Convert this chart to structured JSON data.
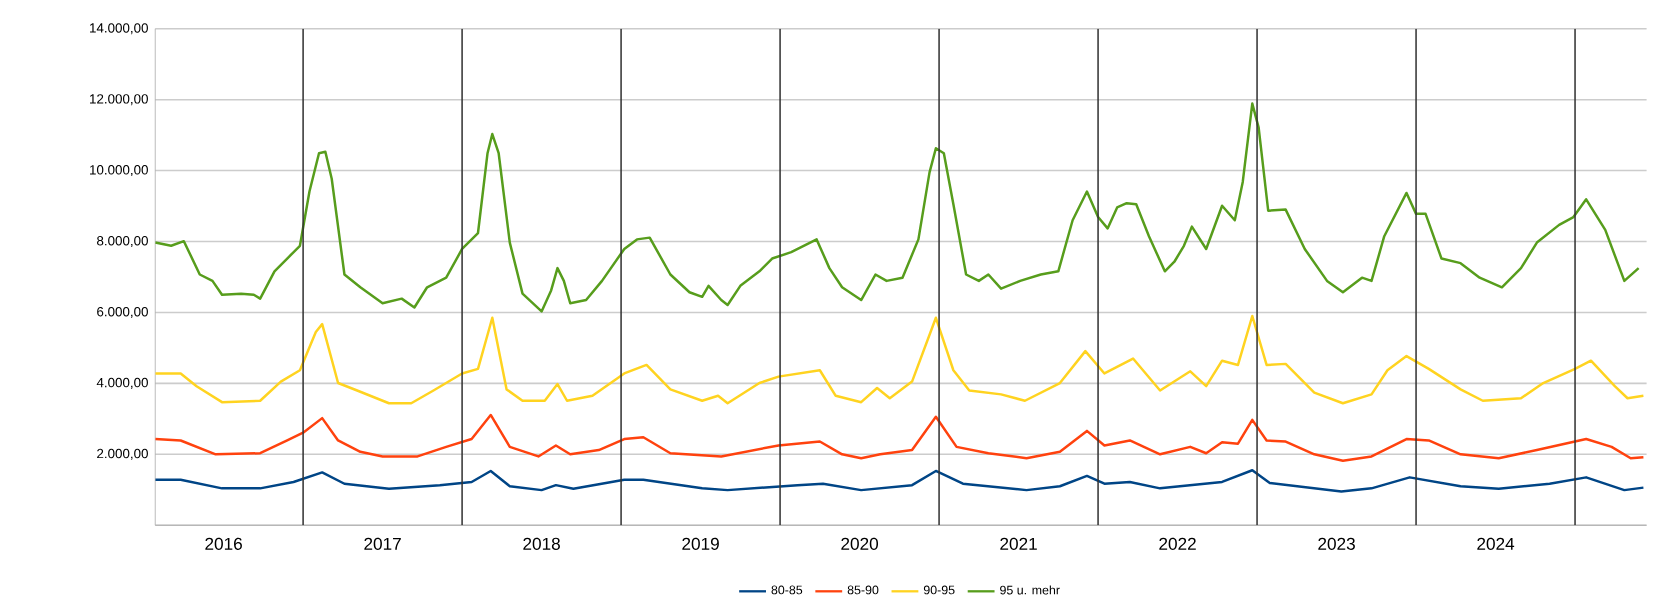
{
  "chart_data": {
    "type": "line",
    "xlim": [
      2016.07,
      2025.45
    ],
    "ylim": [
      0,
      14000
    ],
    "xticks": [
      {
        "value": 2016.5,
        "label": "2016"
      },
      {
        "value": 2017.5,
        "label": "2017"
      },
      {
        "value": 2018.5,
        "label": "2018"
      },
      {
        "value": 2019.5,
        "label": "2019"
      },
      {
        "value": 2020.5,
        "label": "2020"
      },
      {
        "value": 2021.5,
        "label": "2021"
      },
      {
        "value": 2022.5,
        "label": "2022"
      },
      {
        "value": 2023.5,
        "label": "2023"
      },
      {
        "value": 2024.5,
        "label": "2024"
      }
    ],
    "yticks": [
      {
        "value": 0,
        "label": null
      },
      {
        "value": 2000,
        "label": "2.000,00"
      },
      {
        "value": 4000,
        "label": "4.000,00"
      },
      {
        "value": 6000,
        "label": "6.000,00"
      },
      {
        "value": 8000,
        "label": "8.000,00"
      },
      {
        "value": 10000,
        "label": "10.000,00"
      },
      {
        "value": 12000,
        "label": "12.000,00"
      },
      {
        "value": 14000,
        "label": "14.000,00"
      }
    ],
    "grid": "y",
    "legend": "bottom",
    "ref_lines": [
      {
        "axis": "x",
        "value": 2017,
        "color": "#333333"
      },
      {
        "axis": "x",
        "value": 2018,
        "color": "#333333"
      },
      {
        "axis": "x",
        "value": 2019,
        "color": "#333333"
      },
      {
        "axis": "x",
        "value": 2020,
        "color": "#333333"
      },
      {
        "axis": "x",
        "value": 2021,
        "color": "#333333"
      },
      {
        "axis": "x",
        "value": 2022,
        "color": "#333333"
      },
      {
        "axis": "x",
        "value": 2023,
        "color": "#333333"
      },
      {
        "axis": "x",
        "value": 2024,
        "color": "#333333"
      },
      {
        "axis": "x",
        "value": 2025,
        "color": "#333333"
      }
    ],
    "series": [
      {
        "name": "80-85",
        "color": "#004586",
        "x": [
          2016.07,
          2016.23,
          2016.49,
          2016.73,
          2016.94,
          2017.12,
          2017.26,
          2017.54,
          2017.86,
          2018.06,
          2018.18,
          2018.3,
          2018.5,
          2018.59,
          2018.7,
          2019.02,
          2019.14,
          2019.51,
          2019.67,
          2020.11,
          2020.27,
          2020.51,
          2020.83,
          2020.98,
          2021.15,
          2021.55,
          2021.76,
          2021.93,
          2022.04,
          2022.2,
          2022.39,
          2022.78,
          2022.97,
          2023.08,
          2023.53,
          2023.72,
          2023.96,
          2024.28,
          2024.52,
          2024.84,
          2025.07,
          2025.31,
          2025.43
        ],
        "values": [
          1280,
          1280,
          1040,
          1040,
          1220,
          1490,
          1170,
          1030,
          1130,
          1220,
          1530,
          1100,
          990,
          1130,
          1030,
          1280,
          1280,
          1040,
          990,
          1130,
          1170,
          990,
          1130,
          1530,
          1170,
          990,
          1100,
          1390,
          1170,
          1220,
          1040,
          1220,
          1550,
          1190,
          950,
          1040,
          1350,
          1100,
          1030,
          1170,
          1350,
          990,
          1060
        ]
      },
      {
        "name": "85-90",
        "color": "#ff420e",
        "x": [
          2016.07,
          2016.23,
          2016.45,
          2016.73,
          2016.9,
          2017.0,
          2017.12,
          2017.22,
          2017.36,
          2017.5,
          2017.72,
          2017.9,
          2018.06,
          2018.18,
          2018.3,
          2018.48,
          2018.59,
          2018.68,
          2018.86,
          2019.02,
          2019.14,
          2019.31,
          2019.63,
          2019.99,
          2020.25,
          2020.39,
          2020.51,
          2020.63,
          2020.83,
          2020.98,
          2021.11,
          2021.31,
          2021.55,
          2021.76,
          2021.93,
          2022.04,
          2022.2,
          2022.39,
          2022.58,
          2022.68,
          2022.78,
          2022.88,
          2022.97,
          2023.06,
          2023.18,
          2023.36,
          2023.54,
          2023.72,
          2023.94,
          2024.08,
          2024.28,
          2024.52,
          2024.76,
          2025.07,
          2025.23,
          2025.35,
          2025.43
        ],
        "values": [
          2430,
          2390,
          2000,
          2030,
          2390,
          2610,
          3020,
          2390,
          2070,
          1940,
          1940,
          2210,
          2430,
          3110,
          2210,
          1940,
          2250,
          2000,
          2120,
          2430,
          2480,
          2030,
          1940,
          2250,
          2360,
          2000,
          1890,
          2000,
          2120,
          3060,
          2210,
          2030,
          1890,
          2070,
          2660,
          2250,
          2390,
          2000,
          2210,
          2030,
          2340,
          2300,
          2970,
          2390,
          2360,
          2000,
          1820,
          1940,
          2430,
          2390,
          2000,
          1890,
          2120,
          2430,
          2210,
          1890,
          1920
        ]
      },
      {
        "name": "90-95",
        "color": "#ffd320",
        "x": [
          2016.07,
          2016.23,
          2016.33,
          2016.49,
          2016.73,
          2016.86,
          2016.98,
          2017.08,
          2017.12,
          2017.22,
          2017.34,
          2017.54,
          2017.68,
          2017.82,
          2018.0,
          2018.1,
          2018.19,
          2018.28,
          2018.38,
          2018.52,
          2018.6,
          2018.66,
          2018.82,
          2019.02,
          2019.16,
          2019.31,
          2019.51,
          2019.61,
          2019.67,
          2019.87,
          2019.99,
          2020.25,
          2020.35,
          2020.51,
          2020.61,
          2020.69,
          2020.83,
          2020.98,
          2021.09,
          2021.19,
          2021.39,
          2021.54,
          2021.76,
          2021.92,
          2022.04,
          2022.22,
          2022.39,
          2022.58,
          2022.68,
          2022.78,
          2022.88,
          2022.97,
          2023.06,
          2023.18,
          2023.36,
          2023.54,
          2023.72,
          2023.82,
          2023.94,
          2024.08,
          2024.28,
          2024.42,
          2024.66,
          2024.8,
          2025.0,
          2025.1,
          2025.25,
          2025.33,
          2025.43
        ],
        "values": [
          4280,
          4280,
          3920,
          3470,
          3510,
          4050,
          4370,
          5450,
          5670,
          4010,
          3800,
          3440,
          3440,
          3800,
          4280,
          4410,
          5850,
          3830,
          3510,
          3510,
          3980,
          3510,
          3650,
          4280,
          4520,
          3830,
          3510,
          3650,
          3440,
          4010,
          4190,
          4370,
          3650,
          3470,
          3870,
          3580,
          4050,
          5850,
          4370,
          3800,
          3690,
          3510,
          4010,
          4910,
          4280,
          4700,
          3800,
          4340,
          3920,
          4640,
          4520,
          5900,
          4520,
          4550,
          3740,
          3440,
          3690,
          4370,
          4770,
          4410,
          3830,
          3510,
          3580,
          4010,
          4410,
          4640,
          3920,
          3580,
          3650
        ]
      },
      {
        "name": "95 u. mehr",
        "color": "#579d1c",
        "x": [
          2016.07,
          2016.17,
          2016.25,
          2016.35,
          2016.43,
          2016.49,
          2016.61,
          2016.69,
          2016.73,
          2016.82,
          2016.9,
          2016.98,
          2017.04,
          2017.1,
          2017.14,
          2017.18,
          2017.26,
          2017.36,
          2017.5,
          2017.62,
          2017.7,
          2017.78,
          2017.9,
          2018.0,
          2018.1,
          2018.16,
          2018.19,
          2018.23,
          2018.3,
          2018.38,
          2018.5,
          2018.56,
          2018.6,
          2018.64,
          2018.68,
          2018.78,
          2018.88,
          2019.02,
          2019.1,
          2019.18,
          2019.31,
          2019.43,
          2019.51,
          2019.55,
          2019.63,
          2019.67,
          2019.75,
          2019.87,
          2019.95,
          2020.07,
          2020.23,
          2020.31,
          2020.39,
          2020.51,
          2020.6,
          2020.67,
          2020.77,
          2020.87,
          2020.94,
          2020.98,
          2021.03,
          2021.09,
          2021.17,
          2021.25,
          2021.31,
          2021.39,
          2021.51,
          2021.64,
          2021.75,
          2021.84,
          2021.93,
          2022.0,
          2022.06,
          2022.12,
          2022.18,
          2022.24,
          2022.32,
          2022.42,
          2022.48,
          2022.54,
          2022.59,
          2022.68,
          2022.78,
          2022.86,
          2022.91,
          2022.97,
          2023.01,
          2023.07,
          2023.18,
          2023.3,
          2023.44,
          2023.54,
          2023.66,
          2023.72,
          2023.8,
          2023.94,
          2024.0,
          2024.06,
          2024.16,
          2024.28,
          2024.4,
          2024.54,
          2024.66,
          2024.76,
          2024.9,
          2024.99,
          2025.07,
          2025.19,
          2025.31,
          2025.4
        ],
        "values": [
          7970,
          7880,
          8010,
          7070,
          6890,
          6500,
          6530,
          6500,
          6390,
          7160,
          7520,
          7880,
          9410,
          10490,
          10530,
          9770,
          7070,
          6710,
          6260,
          6390,
          6140,
          6710,
          6980,
          7790,
          8240,
          10490,
          11030,
          10490,
          7970,
          6530,
          6030,
          6620,
          7250,
          6890,
          6260,
          6350,
          6890,
          7790,
          8060,
          8110,
          7070,
          6570,
          6440,
          6750,
          6350,
          6210,
          6750,
          7160,
          7520,
          7700,
          8060,
          7250,
          6710,
          6350,
          7070,
          6890,
          6980,
          8060,
          9950,
          10630,
          10490,
          9050,
          7070,
          6890,
          7070,
          6670,
          6890,
          7070,
          7160,
          8600,
          9410,
          8690,
          8370,
          8960,
          9080,
          9050,
          8150,
          7160,
          7430,
          7880,
          8420,
          7790,
          9010,
          8600,
          9680,
          11890,
          11210,
          8870,
          8900,
          7790,
          6890,
          6570,
          6980,
          6890,
          8150,
          9370,
          8780,
          8780,
          7520,
          7390,
          6980,
          6710,
          7250,
          7970,
          8470,
          8690,
          9190,
          8330,
          6890,
          7250
        ]
      }
    ]
  }
}
